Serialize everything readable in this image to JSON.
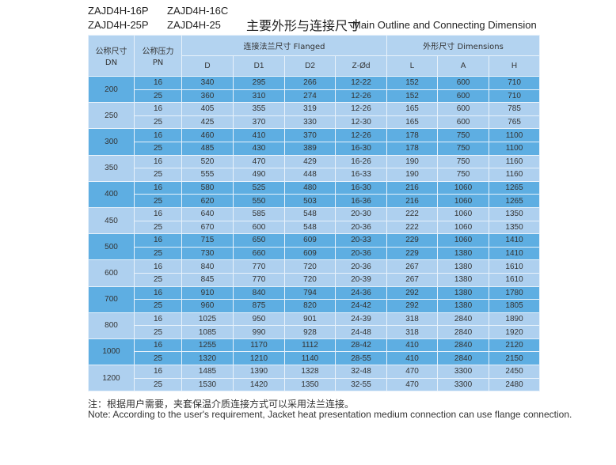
{
  "models": [
    "ZAJD4H-16P",
    "ZAJD4H-16C",
    "ZAJD4H-25P",
    "ZAJD4H-25"
  ],
  "title_cn": "主要外形与连接尺寸",
  "title_en": "Main Outline and Connecting Dimension",
  "header": {
    "dn": "公称尺寸\nDN",
    "pn": "公称压力\nPN",
    "flanged": "连接法兰尺寸 Flanged",
    "dimensions": "外形尺寸 Dimensions",
    "cols": [
      "D",
      "D1",
      "D2",
      "Z-Ød",
      "L",
      "A",
      "H"
    ]
  },
  "colors": {
    "light": "#aed0ef",
    "dark": "#5eaee2",
    "header": "#b3d3f0"
  },
  "groups": [
    {
      "dn": "200",
      "rows": [
        [
          "16",
          "340",
          "295",
          "266",
          "12-22",
          "152",
          "600",
          "710"
        ],
        [
          "25",
          "360",
          "310",
          "274",
          "12-26",
          "152",
          "600",
          "710"
        ]
      ]
    },
    {
      "dn": "250",
      "rows": [
        [
          "16",
          "405",
          "355",
          "319",
          "12-26",
          "165",
          "600",
          "785"
        ],
        [
          "25",
          "425",
          "370",
          "330",
          "12-30",
          "165",
          "600",
          "765"
        ]
      ]
    },
    {
      "dn": "300",
      "rows": [
        [
          "16",
          "460",
          "410",
          "370",
          "12-26",
          "178",
          "750",
          "1100"
        ],
        [
          "25",
          "485",
          "430",
          "389",
          "16-30",
          "178",
          "750",
          "1100"
        ]
      ]
    },
    {
      "dn": "350",
      "rows": [
        [
          "16",
          "520",
          "470",
          "429",
          "16-26",
          "190",
          "750",
          "1160"
        ],
        [
          "25",
          "555",
          "490",
          "448",
          "16-33",
          "190",
          "750",
          "1160"
        ]
      ]
    },
    {
      "dn": "400",
      "rows": [
        [
          "16",
          "580",
          "525",
          "480",
          "16-30",
          "216",
          "1060",
          "1265"
        ],
        [
          "25",
          "620",
          "550",
          "503",
          "16-36",
          "216",
          "1060",
          "1265"
        ]
      ]
    },
    {
      "dn": "450",
      "rows": [
        [
          "16",
          "640",
          "585",
          "548",
          "20-30",
          "222",
          "1060",
          "1350"
        ],
        [
          "25",
          "670",
          "600",
          "548",
          "20-36",
          "222",
          "1060",
          "1350"
        ]
      ]
    },
    {
      "dn": "500",
      "rows": [
        [
          "16",
          "715",
          "650",
          "609",
          "20-33",
          "229",
          "1060",
          "1410"
        ],
        [
          "25",
          "730",
          "660",
          "609",
          "20-36",
          "229",
          "1380",
          "1410"
        ]
      ]
    },
    {
      "dn": "600",
      "rows": [
        [
          "16",
          "840",
          "770",
          "720",
          "20-36",
          "267",
          "1380",
          "1610"
        ],
        [
          "25",
          "845",
          "770",
          "720",
          "20-39",
          "267",
          "1380",
          "1610"
        ]
      ]
    },
    {
      "dn": "700",
      "rows": [
        [
          "16",
          "910",
          "840",
          "794",
          "24-36",
          "292",
          "1380",
          "1780"
        ],
        [
          "25",
          "960",
          "875",
          "820",
          "24-42",
          "292",
          "1380",
          "1805"
        ]
      ]
    },
    {
      "dn": "800",
      "rows": [
        [
          "16",
          "1025",
          "950",
          "901",
          "24-39",
          "318",
          "2840",
          "1890"
        ],
        [
          "25",
          "1085",
          "990",
          "928",
          "24-48",
          "318",
          "2840",
          "1920"
        ]
      ]
    },
    {
      "dn": "1000",
      "rows": [
        [
          "16",
          "1255",
          "1170",
          "1112",
          "28-42",
          "410",
          "2840",
          "2120"
        ],
        [
          "25",
          "1320",
          "1210",
          "1140",
          "28-55",
          "410",
          "2840",
          "2150"
        ]
      ]
    },
    {
      "dn": "1200",
      "rows": [
        [
          "16",
          "1485",
          "1390",
          "1328",
          "32-48",
          "470",
          "3300",
          "2450"
        ],
        [
          "25",
          "1530",
          "1420",
          "1350",
          "32-55",
          "470",
          "3300",
          "2480"
        ]
      ]
    }
  ],
  "note_cn": "注：根据用户需要，夹套保温介质连接方式可以采用法兰连接。",
  "note_en": "Note: According to the user's requirement, Jacket heat presentation medium connection can use flange connection."
}
